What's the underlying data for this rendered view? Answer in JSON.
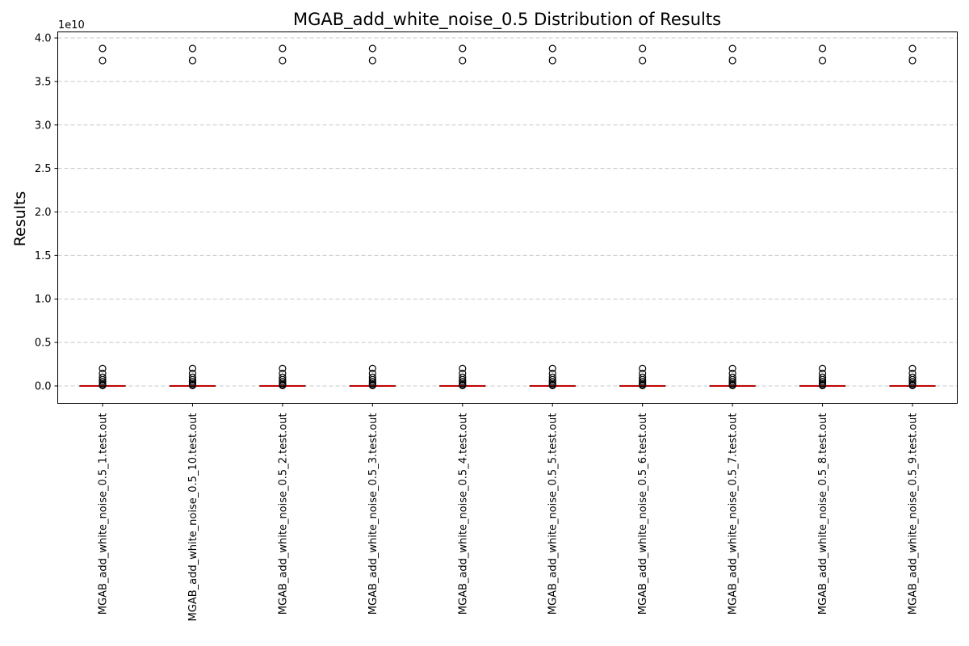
{
  "chart_data": {
    "type": "box",
    "title": "MGAB_add_white_noise_0.5 Distribution of Results",
    "xlabel": "",
    "ylabel": "Results",
    "exponent_label": "1e10",
    "ylim": [
      -2000000000.0,
      40700000000.0
    ],
    "yticks": [
      0,
      5000000000.0,
      10000000000.0,
      15000000000.0,
      20000000000.0,
      25000000000.0,
      30000000000.0,
      35000000000.0,
      40000000000.0
    ],
    "ytick_labels": [
      "0.0",
      "0.5",
      "1.0",
      "1.5",
      "2.0",
      "2.5",
      "3.0",
      "3.5",
      "4.0"
    ],
    "grid": "y-dashed",
    "categories": [
      "MGAB_add_white_noise_0.5_1.test.out",
      "MGAB_add_white_noise_0.5_10.test.out",
      "MGAB_add_white_noise_0.5_2.test.out",
      "MGAB_add_white_noise_0.5_3.test.out",
      "MGAB_add_white_noise_0.5_4.test.out",
      "MGAB_add_white_noise_0.5_5.test.out",
      "MGAB_add_white_noise_0.5_6.test.out",
      "MGAB_add_white_noise_0.5_7.test.out",
      "MGAB_add_white_noise_0.5_8.test.out",
      "MGAB_add_white_noise_0.5_9.test.out"
    ],
    "boxes": {
      "q1": 0,
      "median": 0,
      "q3": 0,
      "whisker_low": 0,
      "whisker_high": 0,
      "outliers": [
        38800000000.0,
        37400000000.0,
        2000000000.0,
        1450000000.0,
        1000000000.0,
        700000000.0,
        500000000.0,
        300000000.0,
        150000000.0,
        50000000.0
      ]
    },
    "colors": {
      "median": "#ff0000",
      "box": "#000000",
      "outlier_edge": "#000000",
      "grid": "#c8c8c8"
    }
  }
}
